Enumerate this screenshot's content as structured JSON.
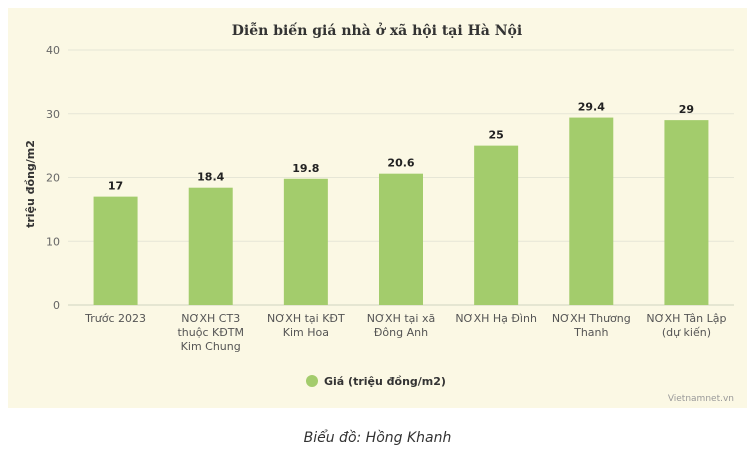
{
  "chart_data": {
    "type": "bar",
    "title": "Diễn biến giá nhà ở xã hội tại Hà Nội",
    "ylabel": "triệu đồng/m2",
    "xlabel": "",
    "ylim": [
      0,
      40
    ],
    "yticks": [
      0,
      10,
      20,
      30,
      40
    ],
    "grid": true,
    "legend_position": "bottom",
    "categories": [
      [
        "Trước 2023"
      ],
      [
        "NƠXH CT3",
        "thuộc KĐTM",
        "Kim Chung"
      ],
      [
        "NƠXH tại KĐT",
        "Kim Hoa"
      ],
      [
        "NƠXH tại xã",
        "Đông Anh"
      ],
      [
        "NƠXH Hạ Đình"
      ],
      [
        "NƠXH Thương",
        "Thanh"
      ],
      [
        "NƠXH Tân Lập",
        "(dự kiến)"
      ]
    ],
    "series": [
      {
        "name": "Giá (triệu đồng/m2)",
        "color": "#a3cc6c",
        "values": [
          17,
          18.4,
          19.8,
          20.6,
          25,
          29.4,
          29
        ]
      }
    ]
  },
  "watermark": "Vietnamnet.vn",
  "caption": "Biểu đồ: Hồng Khanh"
}
